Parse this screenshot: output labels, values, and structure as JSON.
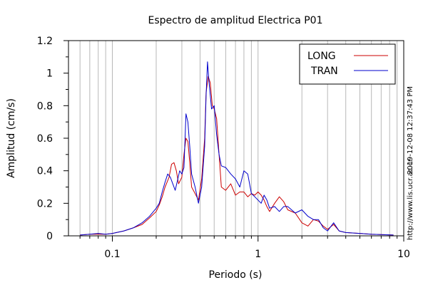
{
  "chart_data": {
    "type": "line",
    "title": "Espectro de amplitud Electrica P01",
    "xlabel": "Periodo (s)",
    "ylabel": "Amplitud (cm/s)",
    "x_scale": "log",
    "xlim": [
      0.05,
      10
    ],
    "ylim": [
      0,
      1.2
    ],
    "x_ticks": [
      0.1,
      1,
      10
    ],
    "x_tick_labels": [
      "0.1",
      "1",
      "10"
    ],
    "y_ticks": [
      0,
      0.2,
      0.4,
      0.6,
      0.8,
      1,
      1.2
    ],
    "y_tick_labels": [
      "0",
      "0.2",
      "0.4",
      "0.6",
      "0.8",
      "1",
      "1.2"
    ],
    "grid": "vertical minor and major lines on x axis",
    "legend_position": "top-right",
    "side_text": [
      "2019-12-08 12:37:43 PM",
      "http://www.lis.ucr.ac.cr"
    ],
    "series": [
      {
        "name": "LONG",
        "color": "#cc0000",
        "points": [
          [
            0.06,
            0.005
          ],
          [
            0.07,
            0.01
          ],
          [
            0.08,
            0.01
          ],
          [
            0.09,
            0.01
          ],
          [
            0.1,
            0.015
          ],
          [
            0.12,
            0.03
          ],
          [
            0.14,
            0.05
          ],
          [
            0.16,
            0.07
          ],
          [
            0.18,
            0.11
          ],
          [
            0.2,
            0.15
          ],
          [
            0.21,
            0.19
          ],
          [
            0.22,
            0.24
          ],
          [
            0.23,
            0.3
          ],
          [
            0.245,
            0.36
          ],
          [
            0.255,
            0.44
          ],
          [
            0.265,
            0.45
          ],
          [
            0.275,
            0.4
          ],
          [
            0.285,
            0.32
          ],
          [
            0.3,
            0.36
          ],
          [
            0.31,
            0.5
          ],
          [
            0.32,
            0.6
          ],
          [
            0.33,
            0.58
          ],
          [
            0.34,
            0.45
          ],
          [
            0.35,
            0.3
          ],
          [
            0.37,
            0.26
          ],
          [
            0.39,
            0.22
          ],
          [
            0.41,
            0.35
          ],
          [
            0.43,
            0.6
          ],
          [
            0.44,
            0.88
          ],
          [
            0.455,
            0.98
          ],
          [
            0.47,
            0.94
          ],
          [
            0.485,
            0.8
          ],
          [
            0.5,
            0.78
          ],
          [
            0.52,
            0.72
          ],
          [
            0.54,
            0.5
          ],
          [
            0.56,
            0.3
          ],
          [
            0.6,
            0.28
          ],
          [
            0.65,
            0.32
          ],
          [
            0.7,
            0.25
          ],
          [
            0.75,
            0.27
          ],
          [
            0.8,
            0.27
          ],
          [
            0.85,
            0.24
          ],
          [
            0.9,
            0.26
          ],
          [
            0.95,
            0.25
          ],
          [
            1.0,
            0.27
          ],
          [
            1.05,
            0.25
          ],
          [
            1.1,
            0.22
          ],
          [
            1.15,
            0.18
          ],
          [
            1.2,
            0.15
          ],
          [
            1.3,
            0.2
          ],
          [
            1.4,
            0.24
          ],
          [
            1.5,
            0.21
          ],
          [
            1.6,
            0.16
          ],
          [
            1.8,
            0.14
          ],
          [
            2.0,
            0.08
          ],
          [
            2.2,
            0.06
          ],
          [
            2.4,
            0.1
          ],
          [
            2.6,
            0.09
          ],
          [
            2.8,
            0.06
          ],
          [
            3.0,
            0.04
          ],
          [
            3.3,
            0.07
          ],
          [
            3.6,
            0.03
          ],
          [
            4.0,
            0.02
          ],
          [
            5.0,
            0.015
          ],
          [
            6.0,
            0.01
          ],
          [
            7.0,
            0.008
          ],
          [
            8.5,
            0.005
          ]
        ]
      },
      {
        "name": "TRAN",
        "color": "#0000cc",
        "points": [
          [
            0.06,
            0.005
          ],
          [
            0.07,
            0.01
          ],
          [
            0.08,
            0.015
          ],
          [
            0.09,
            0.01
          ],
          [
            0.1,
            0.015
          ],
          [
            0.12,
            0.03
          ],
          [
            0.14,
            0.05
          ],
          [
            0.16,
            0.08
          ],
          [
            0.18,
            0.12
          ],
          [
            0.2,
            0.17
          ],
          [
            0.21,
            0.2
          ],
          [
            0.22,
            0.27
          ],
          [
            0.23,
            0.33
          ],
          [
            0.24,
            0.38
          ],
          [
            0.25,
            0.36
          ],
          [
            0.26,
            0.32
          ],
          [
            0.27,
            0.28
          ],
          [
            0.28,
            0.34
          ],
          [
            0.29,
            0.4
          ],
          [
            0.3,
            0.38
          ],
          [
            0.31,
            0.42
          ],
          [
            0.32,
            0.75
          ],
          [
            0.33,
            0.7
          ],
          [
            0.34,
            0.55
          ],
          [
            0.35,
            0.38
          ],
          [
            0.37,
            0.3
          ],
          [
            0.39,
            0.2
          ],
          [
            0.41,
            0.3
          ],
          [
            0.43,
            0.55
          ],
          [
            0.44,
            0.86
          ],
          [
            0.45,
            1.07
          ],
          [
            0.46,
            0.95
          ],
          [
            0.48,
            0.78
          ],
          [
            0.5,
            0.8
          ],
          [
            0.52,
            0.62
          ],
          [
            0.54,
            0.5
          ],
          [
            0.56,
            0.43
          ],
          [
            0.6,
            0.42
          ],
          [
            0.65,
            0.38
          ],
          [
            0.7,
            0.35
          ],
          [
            0.75,
            0.3
          ],
          [
            0.8,
            0.4
          ],
          [
            0.85,
            0.38
          ],
          [
            0.9,
            0.26
          ],
          [
            0.95,
            0.24
          ],
          [
            1.0,
            0.22
          ],
          [
            1.05,
            0.2
          ],
          [
            1.1,
            0.25
          ],
          [
            1.15,
            0.22
          ],
          [
            1.2,
            0.17
          ],
          [
            1.3,
            0.18
          ],
          [
            1.4,
            0.15
          ],
          [
            1.5,
            0.18
          ],
          [
            1.6,
            0.18
          ],
          [
            1.8,
            0.14
          ],
          [
            2.0,
            0.16
          ],
          [
            2.2,
            0.12
          ],
          [
            2.4,
            0.1
          ],
          [
            2.6,
            0.1
          ],
          [
            2.8,
            0.05
          ],
          [
            3.0,
            0.03
          ],
          [
            3.3,
            0.08
          ],
          [
            3.6,
            0.03
          ],
          [
            4.0,
            0.02
          ],
          [
            5.0,
            0.015
          ],
          [
            6.0,
            0.01
          ],
          [
            7.0,
            0.008
          ],
          [
            8.5,
            0.005
          ]
        ]
      }
    ]
  }
}
